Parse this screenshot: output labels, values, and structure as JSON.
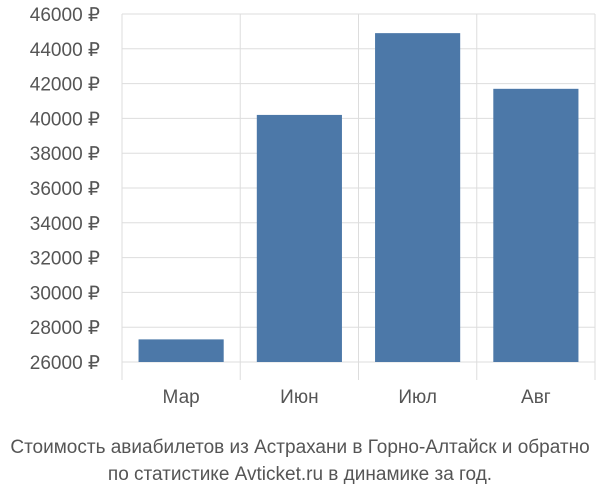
{
  "chart_data": {
    "type": "bar",
    "categories": [
      "Мар",
      "Июн",
      "Июл",
      "Авг"
    ],
    "values": [
      27300,
      40200,
      44900,
      41700
    ],
    "ylim": [
      26000,
      46000
    ],
    "yticks": [
      "26000 ₽",
      "28000 ₽",
      "30000 ₽",
      "32000 ₽",
      "34000 ₽",
      "36000 ₽",
      "38000 ₽",
      "40000 ₽",
      "42000 ₽",
      "44000 ₽",
      "46000 ₽"
    ],
    "grid": true,
    "bar_color": "#4c78a8",
    "grid_color": "#dddddd"
  },
  "caption": {
    "line1": "Стоимость авиабилетов из Астрахани в Горно-Алтайск и обратно",
    "line2": "по статистике Avticket.ru в динамике за год."
  }
}
